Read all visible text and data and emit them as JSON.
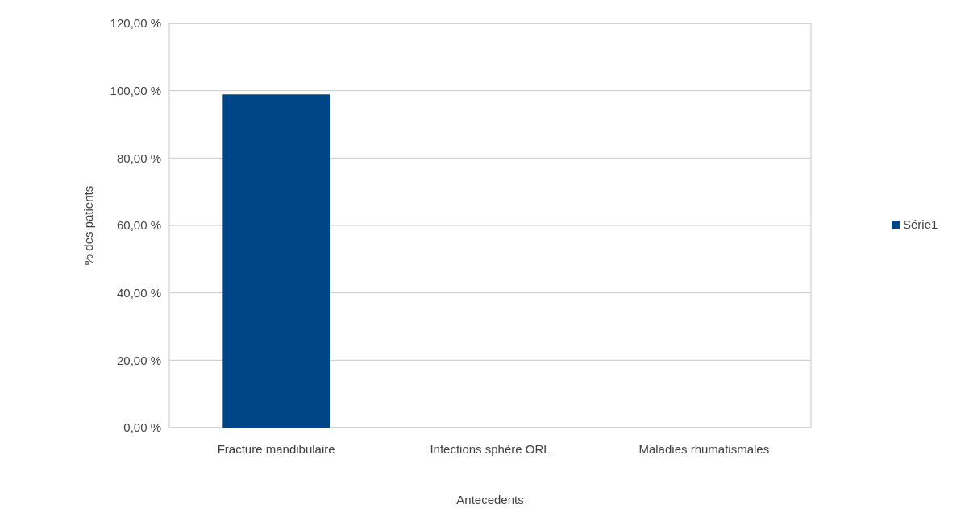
{
  "chart_data": {
    "type": "bar",
    "xlabel": "Antecedents",
    "ylabel": "% des patients",
    "categories": [
      "Fracture mandibulaire",
      "Infections sphère ORL",
      "Maladies rhumatismales"
    ],
    "series": [
      {
        "name": "Série1",
        "color": "#004586",
        "values": [
          98.9,
          0,
          0
        ]
      }
    ],
    "ylim": [
      0,
      120
    ],
    "yticks": [
      {
        "value": 0,
        "label": "0,00 %"
      },
      {
        "value": 20,
        "label": "20,00 %"
      },
      {
        "value": 40,
        "label": "40,00 %"
      },
      {
        "value": 60,
        "label": "60,00 %"
      },
      {
        "value": 80,
        "label": "80,00 %"
      },
      {
        "value": 100,
        "label": "100,00 %"
      },
      {
        "value": 120,
        "label": "120,00 %"
      }
    ],
    "grid": "y",
    "legend": "right"
  }
}
